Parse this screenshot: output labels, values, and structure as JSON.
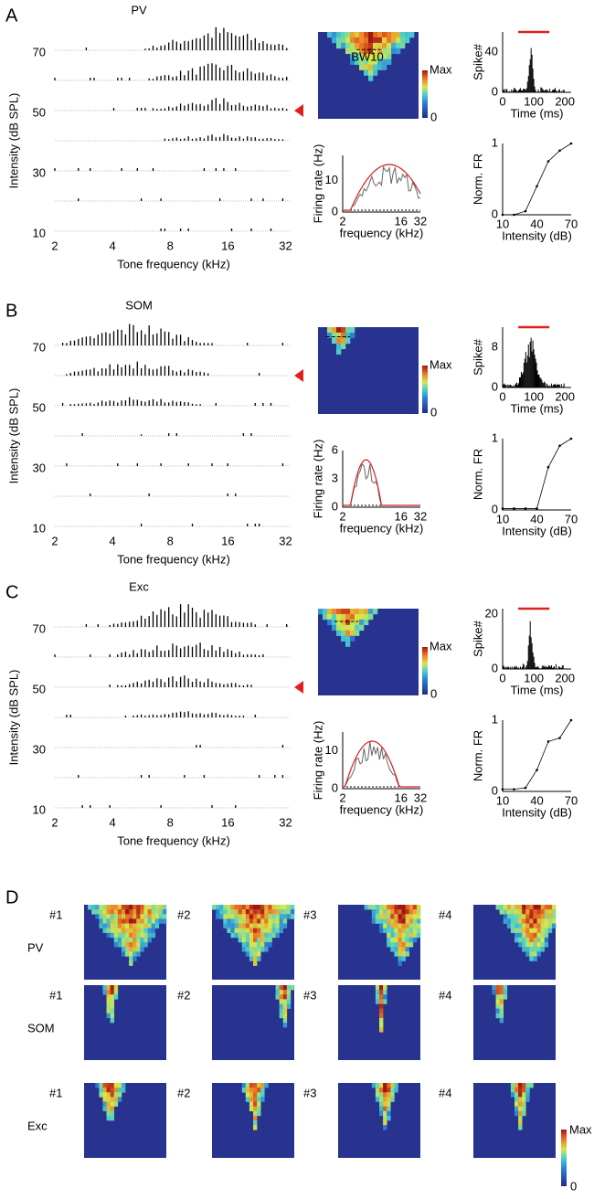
{
  "panels": [
    {
      "label": "A",
      "title": "PV",
      "raster": {
        "ylabel": "Intensity (dB SPL)",
        "xlabel": "Tone frequency (kHz)",
        "ylim": [
          10,
          70
        ],
        "yticks": [
          70,
          50,
          30,
          10
        ],
        "xlim": [
          2,
          34
        ],
        "xticks": [
          2,
          4,
          8,
          16,
          32
        ]
      },
      "heatmap": {
        "bw": "BW10",
        "cmax": "Max",
        "cmin": 0
      },
      "psth": {
        "ylabel": "Spike#",
        "xlabel": "Time (ms)",
        "ylim": [
          0,
          60
        ],
        "yticks": [
          0,
          40
        ],
        "xlim": [
          0,
          220
        ],
        "xticks": [
          0,
          100,
          200
        ]
      },
      "tuning": {
        "ylabel": "Firing rate (Hz)",
        "xlabel": "frequency (kHz)",
        "ylim": [
          0,
          18
        ],
        "yticks": [
          0,
          10
        ],
        "xlim": [
          2,
          32
        ],
        "xticks": [
          2,
          16,
          32
        ]
      },
      "norm_fr": {
        "ylabel": "Norm. FR",
        "xlabel": "Intensity (dB)",
        "ylim": [
          0,
          1
        ],
        "yticks": [
          0,
          1
        ],
        "xlim": [
          10,
          70
        ],
        "xticks": [
          10,
          40,
          70
        ],
        "x": [
          10,
          20,
          30,
          40,
          50,
          60,
          70
        ],
        "values": [
          0,
          0,
          0.05,
          0.4,
          0.75,
          0.9,
          1
        ]
      }
    },
    {
      "label": "B",
      "title": "SOM",
      "raster": {
        "ylabel": "Intensity (dB SPL)",
        "xlabel": "Tone frequency (kHz)",
        "ylim": [
          10,
          70
        ],
        "yticks": [
          70,
          50,
          30,
          10
        ],
        "xlim": [
          2,
          34
        ],
        "xticks": [
          2,
          4,
          8,
          16,
          32
        ]
      },
      "heatmap": {
        "cmax": "Max",
        "cmin": 0
      },
      "psth": {
        "ylabel": "Spike#",
        "xlabel": "Time (ms)",
        "ylim": [
          0,
          12
        ],
        "yticks": [
          0,
          8
        ],
        "xlim": [
          0,
          220
        ],
        "xticks": [
          0,
          100,
          200
        ]
      },
      "tuning": {
        "ylabel": "Firing rate (Hz)",
        "xlabel": "frequency (kHz)",
        "ylim": [
          0,
          6
        ],
        "yticks": [
          0,
          3,
          6
        ],
        "xlim": [
          2,
          32
        ],
        "xticks": [
          2,
          16,
          32
        ]
      },
      "norm_fr": {
        "ylabel": "Norm. FR",
        "xlabel": "Intensity (dB)",
        "ylim": [
          0,
          1
        ],
        "yticks": [
          0,
          1
        ],
        "xlim": [
          10,
          70
        ],
        "xticks": [
          10,
          40,
          70
        ],
        "x": [
          10,
          20,
          30,
          40,
          50,
          60,
          70
        ],
        "values": [
          0.02,
          0.02,
          0.02,
          0.02,
          0.6,
          0.9,
          1
        ]
      }
    },
    {
      "label": "C",
      "title": "Exc",
      "raster": {
        "ylabel": "Intensity (dB SPL)",
        "xlabel": "Tone frequency (kHz)",
        "ylim": [
          10,
          70
        ],
        "yticks": [
          70,
          50,
          30,
          10
        ],
        "xlim": [
          2,
          34
        ],
        "xticks": [
          2,
          4,
          8,
          16,
          32
        ]
      },
      "heatmap": {
        "cmax": "Max",
        "cmin": 0
      },
      "psth": {
        "ylabel": "Spike#",
        "xlabel": "Time (ms)",
        "ylim": [
          0,
          22
        ],
        "yticks": [
          0,
          20
        ],
        "xlim": [
          0,
          220
        ],
        "xticks": [
          0,
          100,
          200
        ]
      },
      "tuning": {
        "ylabel": "Firing rate (Hz)",
        "xlabel": "frequency (kHz)",
        "ylim": [
          0,
          15
        ],
        "yticks": [
          0,
          10
        ],
        "xlim": [
          2,
          32
        ],
        "xticks": [
          2,
          16,
          32
        ]
      },
      "norm_fr": {
        "ylabel": "Norm. FR",
        "xlabel": "Intensity (dB)",
        "ylim": [
          0,
          1
        ],
        "yticks": [
          0,
          1
        ],
        "xlim": [
          10,
          70
        ],
        "xticks": [
          10,
          40,
          70
        ],
        "x": [
          10,
          20,
          30,
          40,
          50,
          60,
          70
        ],
        "values": [
          0.03,
          0.03,
          0.05,
          0.3,
          0.7,
          0.75,
          1
        ]
      }
    }
  ],
  "panel_d": {
    "label": "D",
    "rows": [
      "PV",
      "SOM",
      "Exc"
    ],
    "columns": [
      "#1",
      "#2",
      "#3",
      "#4"
    ],
    "cmax": "Max",
    "cmin": 0
  }
}
